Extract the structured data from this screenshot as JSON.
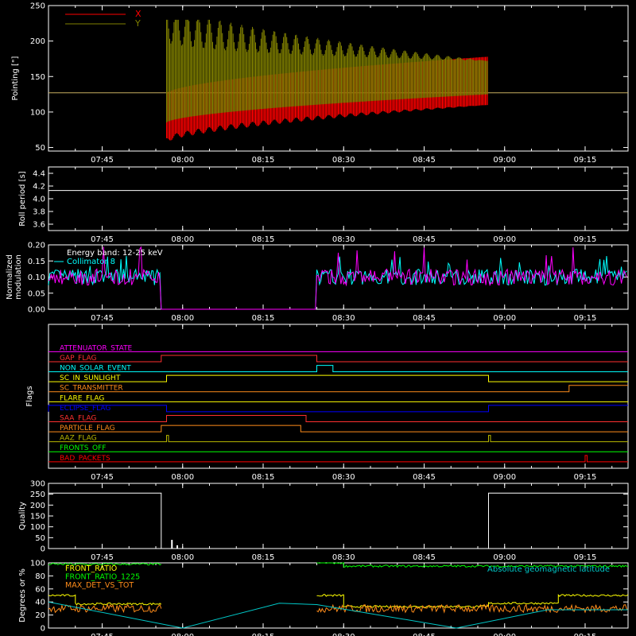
{
  "time_axis": {
    "range": [
      "07:35",
      "09:23"
    ],
    "ticks": [
      "07:45",
      "08:00",
      "08:15",
      "08:30",
      "08:45",
      "09:00",
      "09:15"
    ]
  },
  "colors": {
    "background": "#000000",
    "axes": "#ffffff",
    "x": "#ff0000",
    "y": "#808000",
    "collimator": "#00ffff",
    "magenta": "#ff00ff",
    "green": "#00ff00",
    "yellow": "#ffff00",
    "orange": "#ff8c1a",
    "blue": "#0000ff"
  },
  "chart_data": [
    {
      "id": "pointing",
      "type": "line",
      "ylabel": "Pointing [\"]",
      "ylim": [
        45,
        250
      ],
      "yticks": [
        "250",
        "200",
        "150",
        "100",
        "50"
      ],
      "legend": {
        "placement": "top-left",
        "entries": [
          "X",
          "Y"
        ]
      },
      "baseline": 127,
      "envelope": {
        "start": "07:57",
        "end": "08:57",
        "x_top_start": 126,
        "x_top_end": 178,
        "x_bottom_start": 60,
        "x_bottom_end": 110,
        "y_top_start": 227,
        "y_top_end": 172,
        "y_bottom_start": 85,
        "y_bottom_end": 125
      },
      "series": [
        {
          "name": "X",
          "color": "#ff0000"
        },
        {
          "name": "Y",
          "color": "#808000"
        }
      ]
    },
    {
      "id": "roll",
      "type": "line",
      "ylabel": "Roll period [s]",
      "ylim": [
        3.5,
        4.5
      ],
      "yticks": [
        "4.4",
        "4.2",
        "4.0",
        "3.8",
        "3.6"
      ],
      "value": 4.13
    },
    {
      "id": "modulation",
      "type": "line",
      "ylabel": [
        "Normalized",
        "modulation"
      ],
      "ylim": [
        0,
        0.2
      ],
      "yticks": [
        "0.20",
        "0.15",
        "0.10",
        "0.05",
        "0.00"
      ],
      "annotation": "Energy band: 12-25 keV",
      "legend": {
        "placement": "top-left",
        "entries": [
          "Collimator 8"
        ]
      },
      "segments": [
        {
          "start": "07:35",
          "end": "07:56",
          "level": 0.1
        },
        {
          "start": "07:56",
          "end": "08:25",
          "level": 0.0
        },
        {
          "start": "08:25",
          "end": "09:23",
          "level": 0.1
        }
      ]
    },
    {
      "id": "flags",
      "type": "line",
      "ylabel": "Flags",
      "flags": [
        {
          "name": "ATTENUATOR_STATE",
          "color": "#ff00ff",
          "on": []
        },
        {
          "name": "GAP_FLAG",
          "color": "#ff3030",
          "on": [
            [
              "07:56",
              "08:25"
            ]
          ]
        },
        {
          "name": "NON_SOLAR_EVENT",
          "color": "#00ffff",
          "on": [
            [
              "08:25",
              "08:28"
            ]
          ]
        },
        {
          "name": "SC_IN_SUNLIGHT",
          "color": "#ffff00",
          "on": [
            [
              "07:57",
              "08:57"
            ]
          ]
        },
        {
          "name": "SC_TRANSMITTER",
          "color": "#ff8c1a",
          "on": [
            [
              "09:12",
              "09:23"
            ]
          ]
        },
        {
          "name": "FLARE_FLAG",
          "color": "#ffff00",
          "on": []
        },
        {
          "name": "ECLIPSE_FLAG",
          "color": "#0000ff",
          "on": [
            [
              "07:35",
              "07:57"
            ],
            [
              "08:57",
              "09:23"
            ]
          ]
        },
        {
          "name": "SAA_FLAG",
          "color": "#ff3030",
          "on": [
            [
              "07:57",
              "08:23"
            ]
          ]
        },
        {
          "name": "PARTICLE_FLAG",
          "color": "#ff8c1a",
          "on": [
            [
              "07:56",
              "08:22"
            ]
          ]
        },
        {
          "name": "AAZ_FLAG",
          "color": "#b8b800",
          "on": [
            [
              "07:57",
              "07:57"
            ],
            [
              "08:57",
              "08:57"
            ]
          ]
        },
        {
          "name": "FRONTS_OFF",
          "color": "#00ff00",
          "on": []
        },
        {
          "name": "BAD_PACKETS",
          "color": "#ff0000",
          "on": [
            [
              "09:15",
              "09:15"
            ]
          ]
        }
      ]
    },
    {
      "id": "quality",
      "type": "line",
      "ylabel": "Quality",
      "ylim": [
        0,
        300
      ],
      "yticks": [
        "300",
        "250",
        "200",
        "150",
        "100",
        "50",
        "0"
      ],
      "segments": [
        {
          "start": "07:35",
          "end": "07:56",
          "value": 255
        },
        {
          "start": "07:56",
          "end": "08:57",
          "value": 0
        },
        {
          "start": "08:57",
          "end": "09:23",
          "value": 255
        }
      ],
      "spikes": [
        {
          "time": "07:58",
          "value": 40
        },
        {
          "time": "07:59",
          "value": 15
        }
      ]
    },
    {
      "id": "ratios",
      "type": "line",
      "ylabel": "Degrees or %",
      "ylim": [
        0,
        100
      ],
      "yticks": [
        "100",
        "80",
        "60",
        "40",
        "20",
        "0"
      ],
      "legend": {
        "placement": "top-left",
        "entries": [
          "FRONT_RATIO",
          "FRONT_RATIO_1225",
          "MAX_DET_VS_TOT"
        ]
      },
      "annotation": "Absolute geomagnetic latitude",
      "series": [
        {
          "name": "FRONT_RATIO",
          "color": "#ffff00"
        },
        {
          "name": "FRONT_RATIO_1225",
          "color": "#00ff00"
        },
        {
          "name": "MAX_DET_VS_TOT",
          "color": "#ff8c1a"
        },
        {
          "name": "Absolute geomagnetic latitude",
          "color": "#00c8c8"
        }
      ],
      "latitude_points": [
        [
          "07:35",
          40
        ],
        [
          "08:00",
          0
        ],
        [
          "08:18",
          38
        ],
        [
          "08:25",
          36
        ],
        [
          "08:51",
          0
        ],
        [
          "09:08",
          28
        ],
        [
          "09:23",
          28
        ]
      ],
      "level_segments": [
        {
          "name": "FRONT_RATIO",
          "pieces": [
            [
              "07:35",
              "07:40",
              50
            ],
            [
              "07:40",
              "07:56",
              37
            ],
            [
              "08:25",
              "08:30",
              50
            ],
            [
              "08:30",
              "08:57",
              33
            ],
            [
              "08:57",
              "09:10",
              38
            ],
            [
              "09:10",
              "09:23",
              50
            ]
          ]
        },
        {
          "name": "FRONT_RATIO_1225",
          "pieces": [
            [
              "07:35",
              "07:56",
              98
            ],
            [
              "08:25",
              "08:30",
              100
            ],
            [
              "08:30",
              "09:23",
              95
            ]
          ]
        },
        {
          "name": "MAX_DET_VS_TOT",
          "pieces": [
            [
              "07:35",
              "07:56",
              30
            ],
            [
              "08:25",
              "09:23",
              30
            ]
          ]
        }
      ]
    }
  ]
}
